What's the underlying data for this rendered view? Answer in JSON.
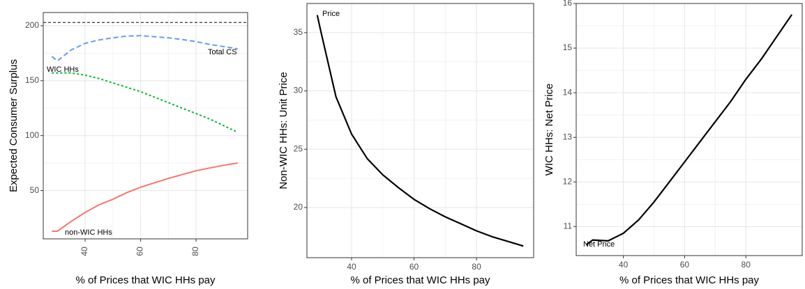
{
  "chart_data": [
    {
      "type": "line",
      "x_label": "% of Prices that WIC HHs pay",
      "y_label": "Expected Consumer Surplus",
      "x": [
        28,
        30,
        35,
        40,
        45,
        50,
        55,
        60,
        65,
        70,
        75,
        80,
        85,
        90,
        95
      ],
      "series": [
        {
          "name": "Total CS",
          "color": "#619CFF",
          "linestyle": "dashed",
          "values": [
            172,
            168,
            178,
            184,
            187,
            189,
            190.5,
            191,
            190,
            189,
            187.5,
            185.5,
            183,
            181,
            179
          ]
        },
        {
          "name": "WIC HHs",
          "color": "#00BA38",
          "linestyle": "dotted",
          "values": [
            157,
            157,
            157,
            155,
            152,
            148,
            144,
            140,
            135,
            130,
            125,
            120,
            115,
            109,
            103
          ]
        },
        {
          "name": "non-WIC HHs",
          "color": "#F8766D",
          "linestyle": "solid",
          "values": [
            13,
            13,
            22,
            30,
            37,
            42,
            48,
            53,
            57,
            61,
            64.5,
            68,
            70.5,
            73,
            75
          ]
        }
      ],
      "hline": 203,
      "xlim": [
        24.9,
        98.6
      ],
      "ylim": [
        6,
        212
      ],
      "xticks": [
        40,
        60,
        80
      ],
      "yticks": [
        50,
        100,
        150,
        200
      ],
      "grid": true
    },
    {
      "type": "line",
      "x_label": "% of Prices that WIC HHs pay",
      "y_label": "Non-WIC HHs: Unit Price",
      "x": [
        29,
        30,
        35,
        40,
        45,
        50,
        55,
        60,
        65,
        70,
        75,
        80,
        85,
        90,
        95
      ],
      "series": [
        {
          "name": "Price",
          "color": "#000000",
          "linestyle": "solid",
          "values": [
            36.5,
            35.3,
            29.5,
            26.3,
            24.2,
            22.8,
            21.7,
            20.7,
            19.9,
            19.2,
            18.6,
            18.0,
            17.5,
            17.1,
            16.7
          ]
        }
      ],
      "xlim": [
        25.7,
        98.3
      ],
      "ylim": [
        15.7,
        37.5
      ],
      "xticks": [
        40,
        60,
        80
      ],
      "yticks": [
        20,
        25,
        30,
        35
      ],
      "grid": true
    },
    {
      "type": "line",
      "x_label": "% of Prices that WIC HHs pay",
      "y_label": "WIC HHs: Net Price",
      "x": [
        28,
        30,
        35,
        40,
        45,
        50,
        55,
        60,
        65,
        70,
        75,
        80,
        85,
        90,
        95
      ],
      "series": [
        {
          "name": "Net Price",
          "color": "#000000",
          "linestyle": "solid",
          "values": [
            10.6,
            10.7,
            10.68,
            10.85,
            11.15,
            11.55,
            12.0,
            12.45,
            12.9,
            13.35,
            13.8,
            14.3,
            14.75,
            15.25,
            15.75
          ]
        }
      ],
      "xlim": [
        24.6,
        98.4
      ],
      "ylim": [
        10.35,
        16.0
      ],
      "xticks": [
        40,
        60,
        80
      ],
      "yticks": [
        11,
        12,
        13,
        14,
        15,
        16
      ],
      "grid": true
    }
  ]
}
